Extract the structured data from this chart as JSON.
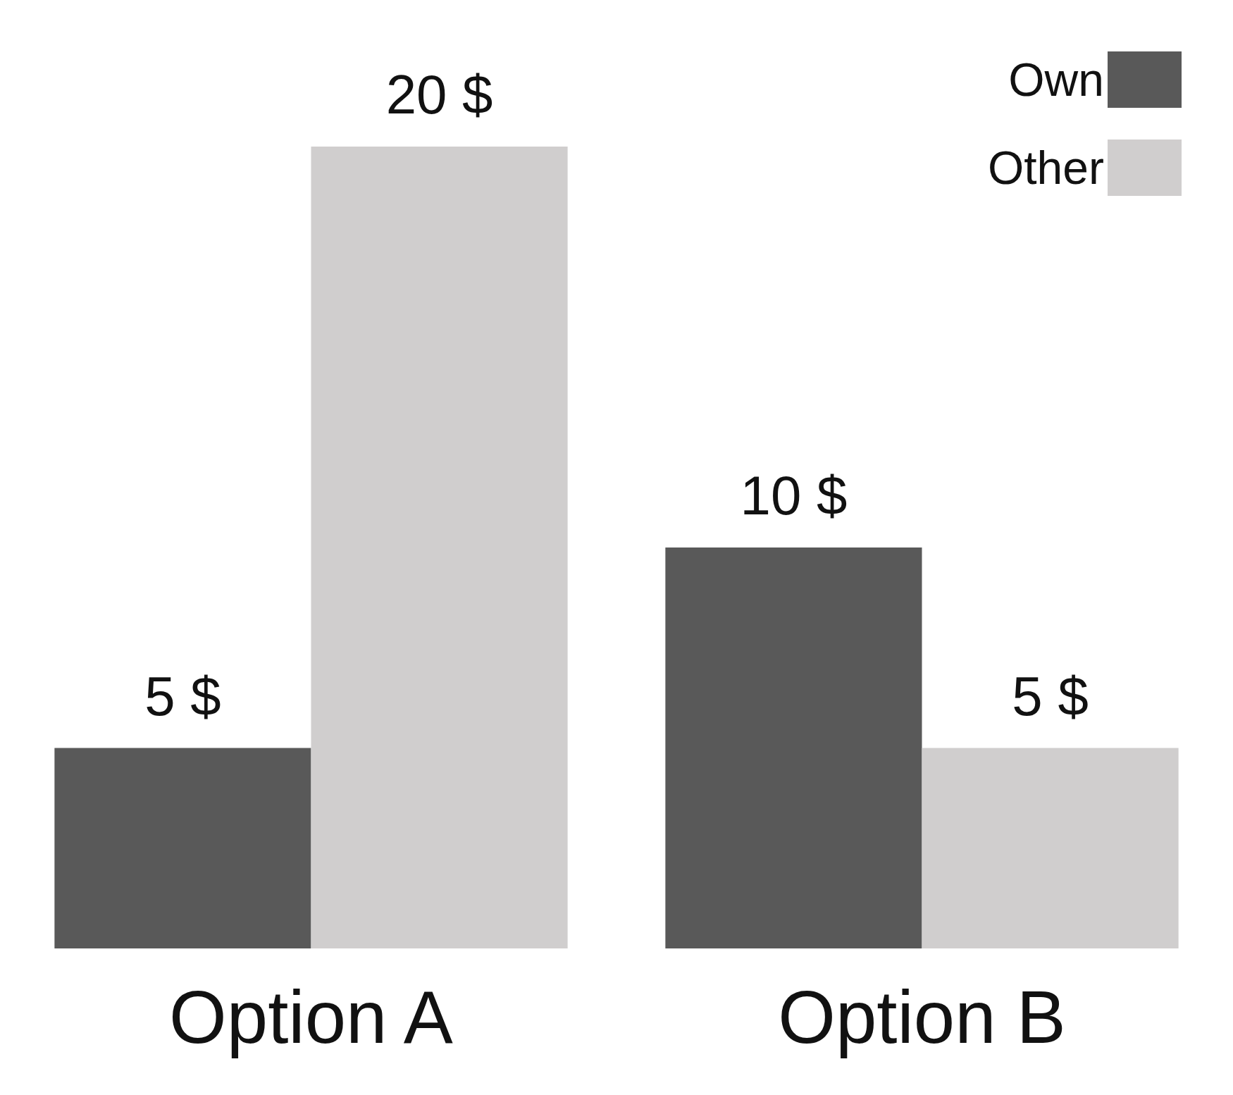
{
  "chart_data": {
    "type": "bar",
    "ylim": [
      0,
      20
    ],
    "tick_labels": "x",
    "categories": [
      "Option A",
      "Option B"
    ],
    "series": [
      {
        "name": "Own",
        "color": "#595959",
        "values": [
          5,
          10
        ],
        "value_labels": [
          "5 $",
          "10 $"
        ]
      },
      {
        "name": "Other",
        "color": "#d0cece",
        "values": [
          20,
          5
        ],
        "value_labels": [
          "20 $",
          "5 $"
        ]
      }
    ],
    "legend": "top right"
  }
}
